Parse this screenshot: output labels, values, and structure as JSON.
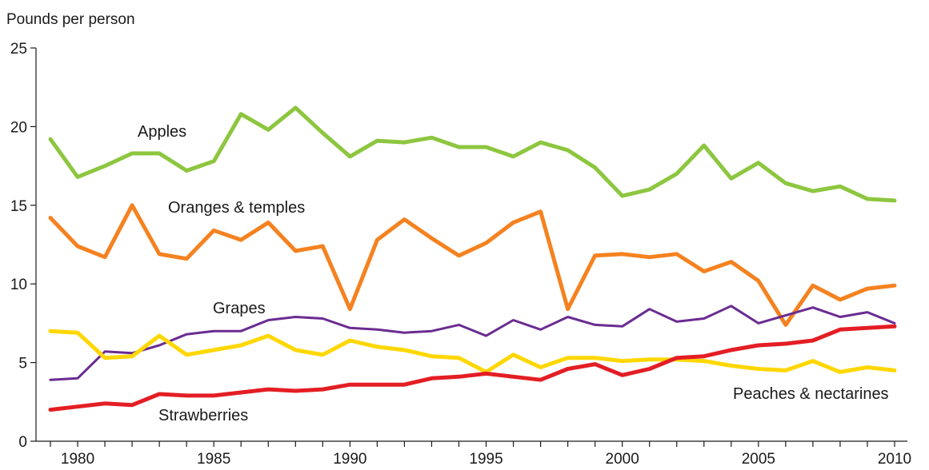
{
  "chart_data": {
    "type": "line",
    "ylabel": "Pounds per person",
    "xlabel": "",
    "ylim": [
      0,
      25
    ],
    "xlim": [
      1979,
      2010
    ],
    "yticks": [
      "0",
      "5",
      "10",
      "15",
      "20",
      "25"
    ],
    "xticks": [
      "1980",
      "1985",
      "1990",
      "1995",
      "2000",
      "2005",
      "2010"
    ],
    "grid": false,
    "legend": "inline labels",
    "x": [
      1979,
      1980,
      1981,
      1982,
      1983,
      1984,
      1985,
      1986,
      1987,
      1988,
      1989,
      1990,
      1991,
      1992,
      1993,
      1994,
      1995,
      1996,
      1997,
      1998,
      1999,
      2000,
      2001,
      2002,
      2003,
      2004,
      2005,
      2006,
      2007,
      2008,
      2009,
      2010
    ],
    "series": [
      {
        "name": "Apples",
        "color": "#8DC63F",
        "stroke_width": 5,
        "values": [
          19.2,
          16.8,
          17.5,
          18.3,
          18.3,
          17.2,
          17.8,
          20.8,
          19.8,
          21.2,
          19.6,
          18.1,
          19.1,
          19.0,
          19.3,
          18.7,
          18.7,
          18.1,
          19.0,
          18.5,
          17.4,
          15.6,
          16.0,
          17.0,
          18.8,
          16.7,
          17.7,
          16.4,
          15.9,
          16.2,
          15.4,
          15.3
        ]
      },
      {
        "name": "Oranges & temples",
        "color": "#F58220",
        "stroke_width": 5,
        "values": [
          14.2,
          12.4,
          11.7,
          15.0,
          11.9,
          11.6,
          13.4,
          12.8,
          13.9,
          12.1,
          12.4,
          8.4,
          12.8,
          14.1,
          12.9,
          11.8,
          12.6,
          13.9,
          14.6,
          8.4,
          11.8,
          11.9,
          11.7,
          11.9,
          10.8,
          11.4,
          10.2,
          7.4,
          9.9,
          9.0,
          9.7,
          9.9
        ]
      },
      {
        "name": "Grapes",
        "color": "#6A2C91",
        "stroke_width": 3,
        "values": [
          3.9,
          4.0,
          5.7,
          5.6,
          6.1,
          6.8,
          7.0,
          7.0,
          7.7,
          7.9,
          7.8,
          7.2,
          7.1,
          6.9,
          7.0,
          7.4,
          6.7,
          7.7,
          7.1,
          7.9,
          7.4,
          7.3,
          8.4,
          7.6,
          7.8,
          8.6,
          7.5,
          8.0,
          8.5,
          7.9,
          8.2,
          7.5
        ]
      },
      {
        "name": "Peaches & nectarines",
        "color": "#FFD700",
        "stroke_width": 5,
        "values": [
          7.0,
          6.9,
          5.3,
          5.4,
          6.7,
          5.5,
          5.8,
          6.1,
          6.7,
          5.8,
          5.5,
          6.4,
          6.0,
          5.8,
          5.4,
          5.3,
          4.4,
          5.5,
          4.7,
          5.3,
          5.3,
          5.1,
          5.2,
          5.2,
          5.1,
          4.8,
          4.6,
          4.5,
          5.1,
          4.4,
          4.7,
          4.5
        ]
      },
      {
        "name": "Strawberries",
        "color": "#E31E24",
        "stroke_width": 5,
        "values": [
          2.0,
          2.2,
          2.4,
          2.3,
          3.0,
          2.9,
          2.9,
          3.1,
          3.3,
          3.2,
          3.3,
          3.6,
          3.6,
          3.6,
          4.0,
          4.1,
          4.3,
          4.1,
          3.9,
          4.6,
          4.9,
          4.2,
          4.6,
          5.3,
          5.4,
          5.8,
          6.1,
          6.2,
          6.4,
          7.1,
          7.2,
          7.3
        ]
      }
    ],
    "annotations": [
      {
        "text": "Apples",
        "series": "Apples"
      },
      {
        "text": "Oranges & temples",
        "series": "Oranges & temples"
      },
      {
        "text": "Grapes",
        "series": "Grapes"
      },
      {
        "text": "Peaches & nectarines",
        "series": "Peaches & nectarines"
      },
      {
        "text": "Strawberries",
        "series": "Strawberries"
      }
    ]
  }
}
